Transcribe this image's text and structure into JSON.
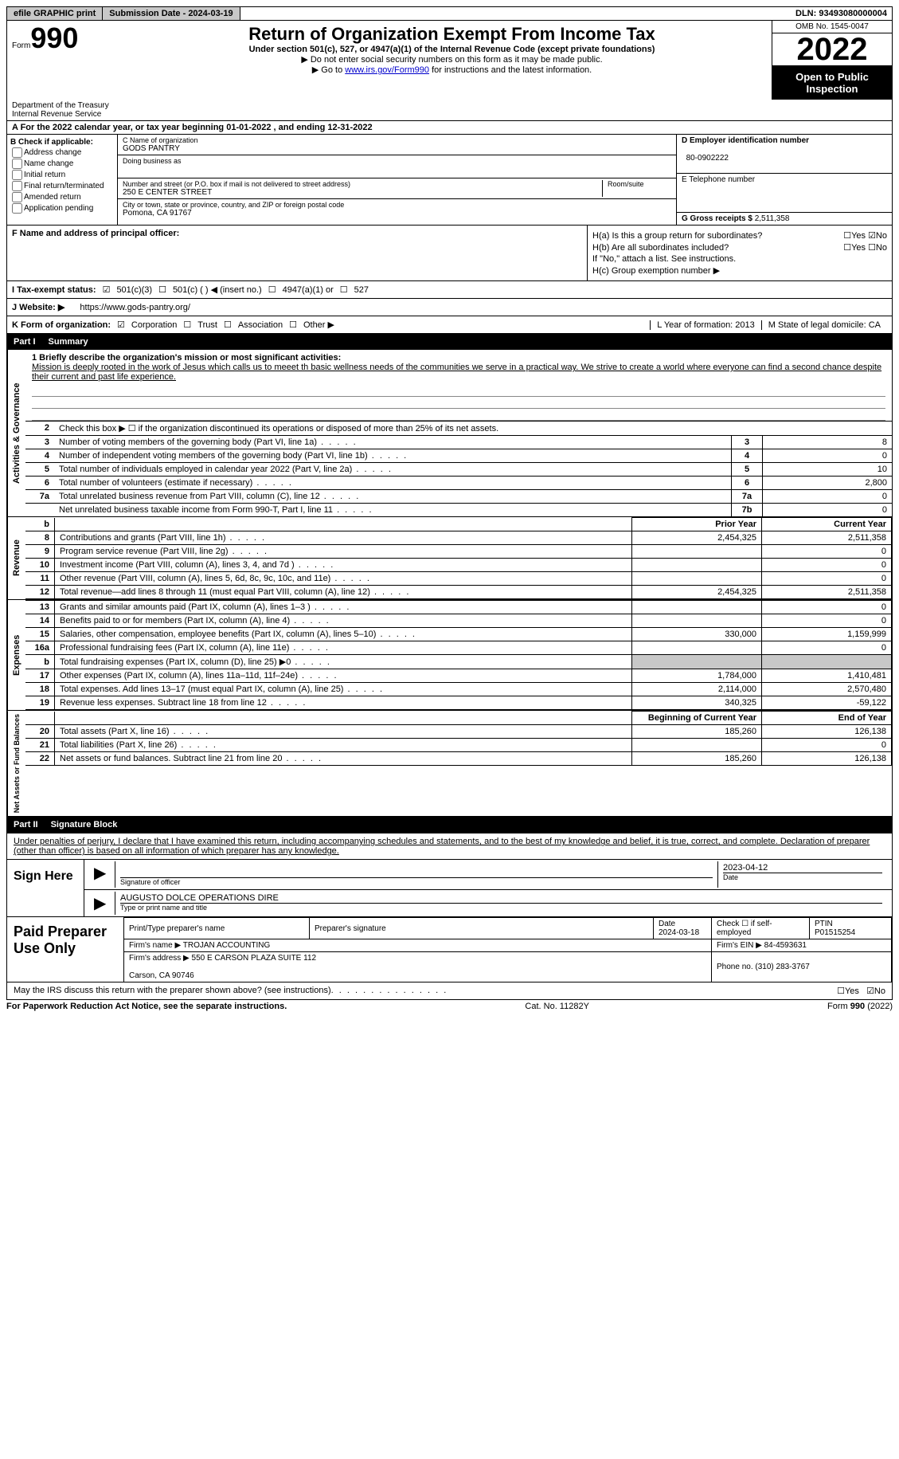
{
  "top": {
    "efile": "efile GRAPHIC print",
    "submission": "Submission Date - 2024-03-19",
    "dln": "DLN: 93493080000004"
  },
  "header": {
    "form_label": "Form",
    "form_number": "990",
    "title": "Return of Organization Exempt From Income Tax",
    "sub": "Under section 501(c), 527, or 4947(a)(1) of the Internal Revenue Code (except private foundations)",
    "note1": "▶ Do not enter social security numbers on this form as it may be made public.",
    "note2_pre": "▶ Go to ",
    "note2_link": "www.irs.gov/Form990",
    "note2_post": " for instructions and the latest information.",
    "dept": "Department of the Treasury\nInternal Revenue Service",
    "omb": "OMB No. 1545-0047",
    "year": "2022",
    "inspect": "Open to Public Inspection"
  },
  "rowA": {
    "text_pre": "A For the 2022 calendar year, or tax year beginning ",
    "begin": "01-01-2022",
    "mid": "   , and ending ",
    "end": "12-31-2022"
  },
  "boxB": {
    "label": "B Check if applicable:",
    "items": [
      "Address change",
      "Name change",
      "Initial return",
      "Final return/terminated",
      "Amended return",
      "Application pending"
    ]
  },
  "boxC": {
    "name_hint": "C Name of organization",
    "name": "GODS PANTRY",
    "dba_hint": "Doing business as",
    "street_hint": "Number and street (or P.O. box if mail is not delivered to street address)",
    "room_hint": "Room/suite",
    "street": "250 E CENTER STREET",
    "city_hint": "City or town, state or province, country, and ZIP or foreign postal code",
    "city": "Pomona, CA  91767"
  },
  "boxD": {
    "label": "D Employer identification number",
    "value": "80-0902222"
  },
  "boxE": {
    "label": "E Telephone number",
    "value": ""
  },
  "boxG": {
    "label": "G Gross receipts $",
    "value": "2,511,358"
  },
  "boxF": {
    "label": "F  Name and address of principal officer:",
    "value": ""
  },
  "boxH": {
    "a_label": "H(a)  Is this a group return for subordinates?",
    "b_label": "H(b)  Are all subordinates included?",
    "b_note": "If \"No,\" attach a list. See instructions.",
    "c_label": "H(c)  Group exemption number ▶"
  },
  "rowI": {
    "label": "I   Tax-exempt status:",
    "o1": "501(c)(3)",
    "o2": "501(c) (  ) ◀ (insert no.)",
    "o3": "4947(a)(1) or",
    "o4": "527"
  },
  "rowJ": {
    "label": "J   Website: ▶",
    "value": "https://www.gods-pantry.org/"
  },
  "rowK": {
    "label": "K Form of organization:",
    "o1": "Corporation",
    "o2": "Trust",
    "o3": "Association",
    "o4": "Other ▶",
    "L": "L Year of formation: 2013",
    "M": "M State of legal domicile: CA"
  },
  "part1": {
    "num": "Part I",
    "title": "Summary",
    "vert1": "Activities & Governance",
    "mission_label": "1  Briefly describe the organization's mission or most significant activities:",
    "mission_text": "Mission is deeply rooted in the work of Jesus which calls us to meeet th basic wellness needs of the communities we serve in a practical way. We strive to create a world where everyone can find a second chance despite their current and past life experience.",
    "line2": "Check this box ▶ ☐  if the organization discontinued its operations or disposed of more than 25% of its net assets.",
    "rows_gov": [
      {
        "n": "3",
        "desc": "Number of voting members of the governing body (Part VI, line 1a)",
        "box": "3",
        "val": "8"
      },
      {
        "n": "4",
        "desc": "Number of independent voting members of the governing body (Part VI, line 1b)",
        "box": "4",
        "val": "0"
      },
      {
        "n": "5",
        "desc": "Total number of individuals employed in calendar year 2022 (Part V, line 2a)",
        "box": "5",
        "val": "10"
      },
      {
        "n": "6",
        "desc": "Total number of volunteers (estimate if necessary)",
        "box": "6",
        "val": "2,800"
      },
      {
        "n": "7a",
        "desc": "Total unrelated business revenue from Part VIII, column (C), line 12",
        "box": "7a",
        "val": "0"
      },
      {
        "n": "",
        "desc": "Net unrelated business taxable income from Form 990-T, Part I, line 11",
        "box": "7b",
        "val": "0"
      }
    ],
    "header_prior": "Prior Year",
    "header_curr": "Current Year",
    "vert2": "Revenue",
    "rows_rev": [
      {
        "n": "8",
        "desc": "Contributions and grants (Part VIII, line 1h)",
        "prior": "2,454,325",
        "curr": "2,511,358"
      },
      {
        "n": "9",
        "desc": "Program service revenue (Part VIII, line 2g)",
        "prior": "",
        "curr": "0"
      },
      {
        "n": "10",
        "desc": "Investment income (Part VIII, column (A), lines 3, 4, and 7d )",
        "prior": "",
        "curr": "0"
      },
      {
        "n": "11",
        "desc": "Other revenue (Part VIII, column (A), lines 5, 6d, 8c, 9c, 10c, and 11e)",
        "prior": "",
        "curr": "0"
      },
      {
        "n": "12",
        "desc": "Total revenue—add lines 8 through 11 (must equal Part VIII, column (A), line 12)",
        "prior": "2,454,325",
        "curr": "2,511,358"
      }
    ],
    "vert3": "Expenses",
    "rows_exp": [
      {
        "n": "13",
        "desc": "Grants and similar amounts paid (Part IX, column (A), lines 1–3 )",
        "prior": "",
        "curr": "0"
      },
      {
        "n": "14",
        "desc": "Benefits paid to or for members (Part IX, column (A), line 4)",
        "prior": "",
        "curr": "0"
      },
      {
        "n": "15",
        "desc": "Salaries, other compensation, employee benefits (Part IX, column (A), lines 5–10)",
        "prior": "330,000",
        "curr": "1,159,999"
      },
      {
        "n": "16a",
        "desc": "Professional fundraising fees (Part IX, column (A), line 11e)",
        "prior": "",
        "curr": "0"
      },
      {
        "n": "b",
        "desc": "Total fundraising expenses (Part IX, column (D), line 25) ▶0",
        "prior": "shaded",
        "curr": "shaded"
      },
      {
        "n": "17",
        "desc": "Other expenses (Part IX, column (A), lines 11a–11d, 11f–24e)",
        "prior": "1,784,000",
        "curr": "1,410,481"
      },
      {
        "n": "18",
        "desc": "Total expenses. Add lines 13–17 (must equal Part IX, column (A), line 25)",
        "prior": "2,114,000",
        "curr": "2,570,480"
      },
      {
        "n": "19",
        "desc": "Revenue less expenses. Subtract line 18 from line 12",
        "prior": "340,325",
        "curr": "-59,122"
      }
    ],
    "header_begin": "Beginning of Current Year",
    "header_end": "End of Year",
    "vert4": "Net Assets or Fund Balances",
    "rows_net": [
      {
        "n": "20",
        "desc": "Total assets (Part X, line 16)",
        "prior": "185,260",
        "curr": "126,138"
      },
      {
        "n": "21",
        "desc": "Total liabilities (Part X, line 26)",
        "prior": "",
        "curr": "0"
      },
      {
        "n": "22",
        "desc": "Net assets or fund balances. Subtract line 21 from line 20",
        "prior": "185,260",
        "curr": "126,138"
      }
    ]
  },
  "part2": {
    "num": "Part II",
    "title": "Signature Block",
    "decl": "Under penalties of perjury, I declare that I have examined this return, including accompanying schedules and statements, and to the best of my knowledge and belief, it is true, correct, and complete. Declaration of preparer (other than officer) is based on all information of which preparer has any knowledge.",
    "sign_here": "Sign Here",
    "sig_officer": "Signature of officer",
    "sig_date_label": "Date",
    "sig_date": "2023-04-12",
    "officer_name": "AUGUSTO DOLCE  OPERATIONS DIRE",
    "type_name": "Type or print name and title",
    "paid_label": "Paid Preparer Use Only",
    "prep_name_h": "Print/Type preparer's name",
    "prep_sig_h": "Preparer's signature",
    "prep_date_h": "Date",
    "prep_date": "2024-03-18",
    "check_self": "Check ☐ if self-employed",
    "ptin_h": "PTIN",
    "ptin": "P01515254",
    "firm_name_h": "Firm's name    ▶",
    "firm_name": "TROJAN ACCOUNTING",
    "firm_ein_h": "Firm's EIN ▶",
    "firm_ein": "84-4593631",
    "firm_addr_h": "Firm's address ▶",
    "firm_addr": "550 E CARSON PLAZA SUITE 112",
    "firm_city": "Carson, CA  90746",
    "phone_h": "Phone no.",
    "phone": "(310) 283-3767",
    "discuss": "May the IRS discuss this return with the preparer shown above? (see instructions)"
  },
  "footer": {
    "paperwork": "For Paperwork Reduction Act Notice, see the separate instructions.",
    "cat": "Cat. No. 11282Y",
    "form": "Form 990 (2022)"
  }
}
